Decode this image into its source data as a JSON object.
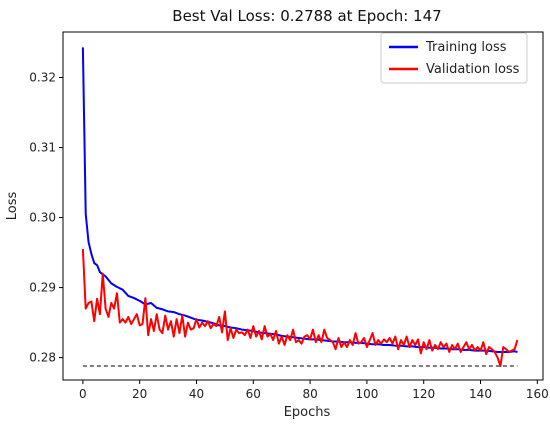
{
  "chart_data": {
    "type": "line",
    "title": "Best Val Loss: 0.2788 at Epoch: 147",
    "xlabel": "Epochs",
    "ylabel": "Loss",
    "xlim": [
      -7,
      162
    ],
    "ylim": [
      0.2768,
      0.3265
    ],
    "xticks": [
      0,
      20,
      40,
      60,
      80,
      100,
      120,
      140,
      160
    ],
    "yticks": [
      0.28,
      0.29,
      0.3,
      0.31,
      0.32
    ],
    "ytick_labels": [
      "0.28",
      "0.29",
      "0.30",
      "0.31",
      "0.32"
    ],
    "grid": false,
    "legend_position": "top-right",
    "series": [
      {
        "name": "Training loss",
        "color": "#0000ff",
        "points": [
          [
            0,
            0.3243
          ],
          [
            1,
            0.3005
          ],
          [
            2,
            0.2965
          ],
          [
            3,
            0.2948
          ],
          [
            4,
            0.2935
          ],
          [
            5,
            0.2932
          ],
          [
            6,
            0.2922
          ],
          [
            8,
            0.2916
          ],
          [
            10,
            0.2906
          ],
          [
            12,
            0.2901
          ],
          [
            14,
            0.2897
          ],
          [
            16,
            0.2888
          ],
          [
            18,
            0.2885
          ],
          [
            20,
            0.2881
          ],
          [
            22,
            0.2876
          ],
          [
            24,
            0.2878
          ],
          [
            26,
            0.2871
          ],
          [
            28,
            0.2869
          ],
          [
            30,
            0.2866
          ],
          [
            32,
            0.2865
          ],
          [
            34,
            0.2862
          ],
          [
            36,
            0.286
          ],
          [
            38,
            0.2857
          ],
          [
            40,
            0.2854
          ],
          [
            42,
            0.2853
          ],
          [
            44,
            0.2851
          ],
          [
            46,
            0.2849
          ],
          [
            48,
            0.2846
          ],
          [
            50,
            0.2845
          ],
          [
            52,
            0.2843
          ],
          [
            54,
            0.2842
          ],
          [
            56,
            0.284
          ],
          [
            58,
            0.2839
          ],
          [
            60,
            0.2838
          ],
          [
            62,
            0.2836
          ],
          [
            64,
            0.2835
          ],
          [
            66,
            0.2834
          ],
          [
            68,
            0.2833
          ],
          [
            70,
            0.2831
          ],
          [
            72,
            0.283
          ],
          [
            74,
            0.2829
          ],
          [
            76,
            0.2828
          ],
          [
            78,
            0.2827
          ],
          [
            80,
            0.2826
          ],
          [
            82,
            0.2826
          ],
          [
            84,
            0.2825
          ],
          [
            86,
            0.2824
          ],
          [
            88,
            0.2823
          ],
          [
            90,
            0.2823
          ],
          [
            92,
            0.2822
          ],
          [
            94,
            0.2822
          ],
          [
            96,
            0.2821
          ],
          [
            98,
            0.2821
          ],
          [
            100,
            0.282
          ],
          [
            102,
            0.2819
          ],
          [
            104,
            0.2819
          ],
          [
            106,
            0.2818
          ],
          [
            108,
            0.2818
          ],
          [
            110,
            0.2817
          ],
          [
            112,
            0.2817
          ],
          [
            114,
            0.2816
          ],
          [
            116,
            0.2816
          ],
          [
            118,
            0.2815
          ],
          [
            120,
            0.2815
          ],
          [
            122,
            0.2814
          ],
          [
            124,
            0.2814
          ],
          [
            126,
            0.2813
          ],
          [
            128,
            0.2813
          ],
          [
            130,
            0.2812
          ],
          [
            132,
            0.2812
          ],
          [
            134,
            0.2811
          ],
          [
            136,
            0.2811
          ],
          [
            138,
            0.281
          ],
          [
            140,
            0.281
          ],
          [
            142,
            0.281
          ],
          [
            144,
            0.2809
          ],
          [
            146,
            0.2808
          ],
          [
            148,
            0.2808
          ],
          [
            150,
            0.2808
          ],
          [
            152,
            0.2809
          ],
          [
            153,
            0.2808
          ]
        ]
      },
      {
        "name": "Validation loss",
        "color": "#ff0000",
        "points": [
          [
            0,
            0.2955
          ],
          [
            1,
            0.287
          ],
          [
            2,
            0.2878
          ],
          [
            3,
            0.288
          ],
          [
            4,
            0.2852
          ],
          [
            5,
            0.2884
          ],
          [
            6,
            0.2862
          ],
          [
            7,
            0.292
          ],
          [
            8,
            0.287
          ],
          [
            9,
            0.2858
          ],
          [
            10,
            0.2878
          ],
          [
            11,
            0.287
          ],
          [
            12,
            0.2892
          ],
          [
            13,
            0.285
          ],
          [
            14,
            0.2855
          ],
          [
            15,
            0.285
          ],
          [
            16,
            0.2858
          ],
          [
            17,
            0.2848
          ],
          [
            18,
            0.2855
          ],
          [
            19,
            0.2862
          ],
          [
            20,
            0.2846
          ],
          [
            21,
            0.2848
          ],
          [
            22,
            0.2885
          ],
          [
            23,
            0.2832
          ],
          [
            24,
            0.2855
          ],
          [
            25,
            0.2838
          ],
          [
            26,
            0.2862
          ],
          [
            27,
            0.284
          ],
          [
            28,
            0.2835
          ],
          [
            29,
            0.286
          ],
          [
            30,
            0.284
          ],
          [
            31,
            0.2852
          ],
          [
            32,
            0.283
          ],
          [
            33,
            0.2855
          ],
          [
            34,
            0.2835
          ],
          [
            35,
            0.286
          ],
          [
            36,
            0.283
          ],
          [
            37,
            0.285
          ],
          [
            38,
            0.284
          ],
          [
            39,
            0.2842
          ],
          [
            40,
            0.2855
          ],
          [
            41,
            0.2843
          ],
          [
            42,
            0.285
          ],
          [
            43,
            0.2845
          ],
          [
            44,
            0.2852
          ],
          [
            45,
            0.2842
          ],
          [
            46,
            0.2848
          ],
          [
            47,
            0.2845
          ],
          [
            48,
            0.2858
          ],
          [
            49,
            0.2836
          ],
          [
            50,
            0.2866
          ],
          [
            51,
            0.2825
          ],
          [
            52,
            0.2842
          ],
          [
            53,
            0.2828
          ],
          [
            54,
            0.284
          ],
          [
            55,
            0.2835
          ],
          [
            56,
            0.2836
          ],
          [
            57,
            0.2832
          ],
          [
            58,
            0.284
          ],
          [
            59,
            0.2828
          ],
          [
            60,
            0.2845
          ],
          [
            61,
            0.283
          ],
          [
            62,
            0.2838
          ],
          [
            63,
            0.2826
          ],
          [
            64,
            0.2845
          ],
          [
            65,
            0.283
          ],
          [
            66,
            0.2834
          ],
          [
            67,
            0.2825
          ],
          [
            68,
            0.2838
          ],
          [
            69,
            0.282
          ],
          [
            70,
            0.283
          ],
          [
            71,
            0.2818
          ],
          [
            72,
            0.2832
          ],
          [
            73,
            0.2825
          ],
          [
            74,
            0.284
          ],
          [
            75,
            0.2822
          ],
          [
            76,
            0.2825
          ],
          [
            77,
            0.282
          ],
          [
            78,
            0.283
          ],
          [
            79,
            0.2832
          ],
          [
            80,
            0.2826
          ],
          [
            81,
            0.284
          ],
          [
            82,
            0.2822
          ],
          [
            83,
            0.2832
          ],
          [
            84,
            0.2822
          ],
          [
            85,
            0.284
          ],
          [
            86,
            0.2828
          ],
          [
            87,
            0.2825
          ],
          [
            88,
            0.2822
          ],
          [
            89,
            0.2812
          ],
          [
            90,
            0.2828
          ],
          [
            91,
            0.2815
          ],
          [
            92,
            0.2822
          ],
          [
            93,
            0.2815
          ],
          [
            94,
            0.2825
          ],
          [
            95,
            0.2818
          ],
          [
            96,
            0.2835
          ],
          [
            97,
            0.282
          ],
          [
            98,
            0.2822
          ],
          [
            99,
            0.2828
          ],
          [
            100,
            0.2815
          ],
          [
            101,
            0.2825
          ],
          [
            102,
            0.2835
          ],
          [
            103,
            0.2818
          ],
          [
            104,
            0.2825
          ],
          [
            105,
            0.282
          ],
          [
            106,
            0.2826
          ],
          [
            107,
            0.2822
          ],
          [
            108,
            0.2828
          ],
          [
            109,
            0.282
          ],
          [
            110,
            0.283
          ],
          [
            111,
            0.2812
          ],
          [
            112,
            0.2825
          ],
          [
            113,
            0.2818
          ],
          [
            114,
            0.283
          ],
          [
            115,
            0.2815
          ],
          [
            116,
            0.2825
          ],
          [
            117,
            0.2818
          ],
          [
            118,
            0.2826
          ],
          [
            119,
            0.2806
          ],
          [
            120,
            0.2822
          ],
          [
            121,
            0.2812
          ],
          [
            122,
            0.2825
          ],
          [
            123,
            0.281
          ],
          [
            124,
            0.2818
          ],
          [
            125,
            0.2812
          ],
          [
            126,
            0.2822
          ],
          [
            127,
            0.2815
          ],
          [
            128,
            0.282
          ],
          [
            129,
            0.2808
          ],
          [
            130,
            0.2818
          ],
          [
            131,
            0.2812
          ],
          [
            132,
            0.282
          ],
          [
            133,
            0.2808
          ],
          [
            134,
            0.2815
          ],
          [
            135,
            0.2822
          ],
          [
            136,
            0.2812
          ],
          [
            137,
            0.2818
          ],
          [
            138,
            0.281
          ],
          [
            139,
            0.2815
          ],
          [
            140,
            0.281
          ],
          [
            141,
            0.2822
          ],
          [
            142,
            0.2805
          ],
          [
            143,
            0.2815
          ],
          [
            144,
            0.2812
          ],
          [
            145,
            0.2808
          ],
          [
            146,
            0.28
          ],
          [
            147,
            0.2788
          ],
          [
            148,
            0.2815
          ],
          [
            149,
            0.2812
          ],
          [
            150,
            0.2808
          ],
          [
            151,
            0.281
          ],
          [
            152,
            0.2812
          ],
          [
            153,
            0.2825
          ]
        ]
      }
    ],
    "reference_line": {
      "style": "dashed",
      "color": "#333333",
      "y": 0.2788,
      "x_range": [
        0,
        153
      ]
    }
  }
}
